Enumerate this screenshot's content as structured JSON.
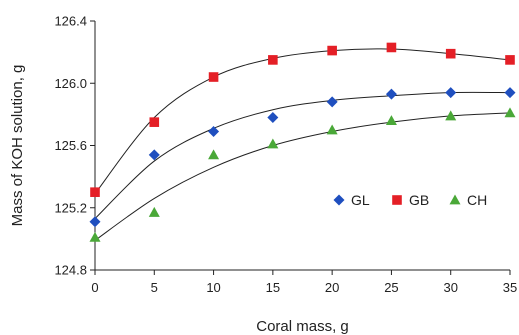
{
  "chart_data": {
    "type": "scatter",
    "xlabel": "Coral mass, g",
    "ylabel": "Mass of KOH solution, g",
    "xlim": [
      0,
      35
    ],
    "ylim": [
      124.8,
      126.4
    ],
    "x_ticks": [
      "0",
      "5",
      "10",
      "15",
      "20",
      "25",
      "30",
      "35"
    ],
    "y_ticks": [
      "124.8",
      "125.2",
      "125.6",
      "126.0",
      "126.4"
    ],
    "x": [
      0,
      5,
      10,
      15,
      20,
      25,
      30,
      35
    ],
    "grid": false,
    "legend_position": "center-right",
    "series": [
      {
        "name": "GL",
        "marker": "diamond",
        "color": "#1f4fbf",
        "values": [
          125.11,
          125.54,
          125.69,
          125.78,
          125.88,
          125.93,
          125.94,
          125.94
        ],
        "fit": [
          125.13,
          125.5,
          125.71,
          125.83,
          125.89,
          125.92,
          125.94,
          125.94
        ]
      },
      {
        "name": "GB",
        "marker": "square",
        "color": "#e41f26",
        "values": [
          125.3,
          125.75,
          126.04,
          126.15,
          126.21,
          126.23,
          126.19,
          126.15
        ],
        "fit": [
          125.29,
          125.78,
          126.04,
          126.16,
          126.21,
          126.22,
          126.19,
          126.15
        ]
      },
      {
        "name": "CH",
        "marker": "triangle",
        "color": "#4aa838",
        "values": [
          125.01,
          125.17,
          125.54,
          125.61,
          125.7,
          125.76,
          125.79,
          125.81
        ],
        "fit": [
          124.99,
          125.26,
          125.46,
          125.6,
          125.69,
          125.75,
          125.79,
          125.81
        ]
      }
    ]
  }
}
